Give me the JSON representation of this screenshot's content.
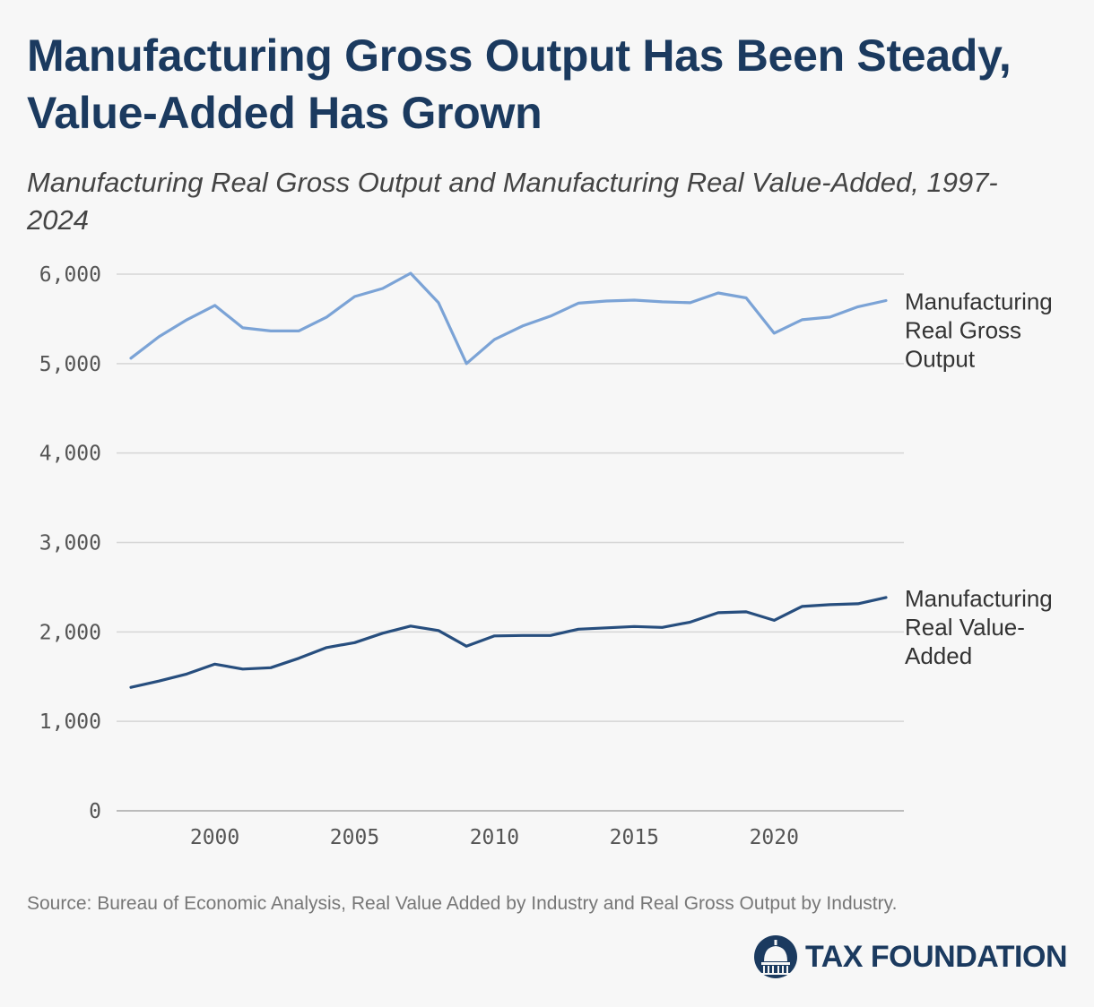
{
  "title": "Manufacturing Gross Output Has Been Steady, Value-Added Has Grown",
  "subtitle": "Manufacturing Real Gross Output and Manufacturing Real Value-Added, 1997-2024",
  "source": "Source: Bureau of Economic Analysis, Real Value Added by Industry and Real Gross Output by Industry.",
  "brand": {
    "name": "TAX FOUNDATION",
    "logo_icon": "capitol-dome-icon"
  },
  "chart_data": {
    "type": "line",
    "x": [
      1997,
      1998,
      1999,
      2000,
      2001,
      2002,
      2003,
      2004,
      2005,
      2006,
      2007,
      2008,
      2009,
      2010,
      2011,
      2012,
      2013,
      2014,
      2015,
      2016,
      2017,
      2018,
      2019,
      2020,
      2021,
      2022,
      2023,
      2024
    ],
    "xticks": [
      2000,
      2005,
      2010,
      2015,
      2020
    ],
    "xlim": [
      1997,
      2024
    ],
    "ylim": [
      0,
      6000
    ],
    "yticks": [
      0,
      1000,
      2000,
      3000,
      4000,
      5000,
      6000
    ],
    "ytick_labels": [
      "0",
      "1,000",
      "2,000",
      "3,000",
      "4,000",
      "5,000",
      "6,000"
    ],
    "grid": "horizontal",
    "legend": "direct labels at right end of lines",
    "series": [
      {
        "name": "Manufacturing Real Gross Output",
        "label_lines": [
          "Manufacturing",
          "Real Gross",
          "Output"
        ],
        "color": "#7ba3d6",
        "values": [
          5060,
          5300,
          5490,
          5650,
          5400,
          5365,
          5365,
          5520,
          5750,
          5840,
          6010,
          5680,
          5000,
          5270,
          5420,
          5530,
          5675,
          5700,
          5710,
          5690,
          5680,
          5790,
          5735,
          5340,
          5490,
          5520,
          5635,
          5705
        ]
      },
      {
        "name": "Manufacturing Real Value-Added",
        "label_lines": [
          "Manufacturing",
          "Real Value-",
          "Added"
        ],
        "color": "#274e7e",
        "values": [
          1380,
          1450,
          1530,
          1640,
          1585,
          1600,
          1705,
          1825,
          1880,
          1985,
          2065,
          2015,
          1840,
          1955,
          1960,
          1960,
          2030,
          2045,
          2060,
          2050,
          2110,
          2215,
          2225,
          2130,
          2285,
          2305,
          2315,
          2385
        ]
      }
    ]
  }
}
